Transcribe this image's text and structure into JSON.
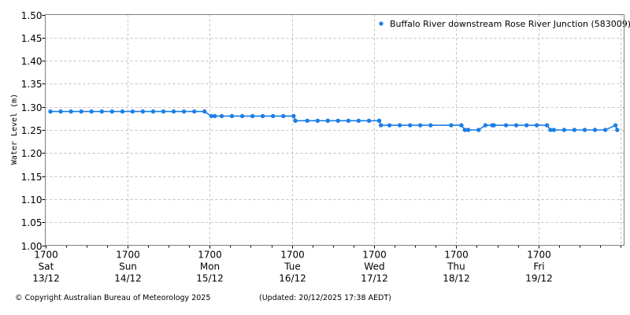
{
  "chart_data": {
    "type": "line",
    "title": "",
    "xlabel": "",
    "ylabel": "Water Level (m)",
    "ylim": [
      1.0,
      1.5
    ],
    "yticks": [
      "1.00",
      "1.05",
      "1.10",
      "1.15",
      "1.20",
      "1.25",
      "1.30",
      "1.35",
      "1.40",
      "1.45",
      "1.50"
    ],
    "grid": true,
    "legend_position": "top-right",
    "x_ticks": [
      {
        "time": "1700",
        "day": "Sat",
        "date": "13/12"
      },
      {
        "time": "1700",
        "day": "Sun",
        "date": "14/12"
      },
      {
        "time": "1700",
        "day": "Mon",
        "date": "15/12"
      },
      {
        "time": "1700",
        "day": "Tue",
        "date": "16/12"
      },
      {
        "time": "1700",
        "day": "Wed",
        "date": "17/12"
      },
      {
        "time": "1700",
        "day": "Thu",
        "date": "18/12"
      },
      {
        "time": "1700",
        "day": "Fri",
        "date": "19/12"
      }
    ],
    "x_unit": "hours since Sat 13/12 1700",
    "x_range_hours": [
      0,
      169
    ],
    "series": [
      {
        "name": "Buffalo River downstream Rose River Junction (583009)",
        "color": "#1a7ee6",
        "x": [
          1.5,
          4.5,
          7.5,
          10.5,
          13.5,
          16.5,
          19.5,
          22.5,
          25.5,
          28.5,
          31.5,
          34.5,
          37.5,
          40.5,
          43.5,
          46.5,
          48.5,
          49.5,
          51.5,
          54.5,
          57.5,
          60.5,
          63.5,
          66.5,
          69.5,
          72.5,
          73.0,
          76.5,
          79.5,
          82.5,
          85.5,
          88.5,
          91.5,
          94.5,
          97.5,
          98.0,
          100.5,
          103.5,
          106.5,
          109.5,
          112.5,
          118.5,
          121.5,
          122.5,
          123.5,
          126.5,
          128.5,
          130.5,
          131.0,
          134.5,
          137.5,
          140.5,
          143.5,
          146.5,
          147.5,
          148.5,
          151.5,
          154.5,
          157.5,
          160.5,
          163.5,
          166.5,
          167.0
        ],
        "values": [
          1.29,
          1.29,
          1.29,
          1.29,
          1.29,
          1.29,
          1.29,
          1.29,
          1.29,
          1.29,
          1.29,
          1.29,
          1.29,
          1.29,
          1.29,
          1.29,
          1.28,
          1.28,
          1.28,
          1.28,
          1.28,
          1.28,
          1.28,
          1.28,
          1.28,
          1.28,
          1.27,
          1.27,
          1.27,
          1.27,
          1.27,
          1.27,
          1.27,
          1.27,
          1.27,
          1.26,
          1.26,
          1.26,
          1.26,
          1.26,
          1.26,
          1.26,
          1.26,
          1.25,
          1.25,
          1.25,
          1.26,
          1.26,
          1.26,
          1.26,
          1.26,
          1.26,
          1.26,
          1.26,
          1.25,
          1.25,
          1.25,
          1.25,
          1.25,
          1.25,
          1.25,
          1.26,
          1.25
        ]
      }
    ]
  },
  "legend": {
    "label": "Buffalo River downstream Rose River Junction (583009)"
  },
  "axis": {
    "ylabel": "Water Level (m)"
  },
  "footer": {
    "copyright": "© Copyright Australian Bureau of Meteorology 2025",
    "updated": "(Updated: 20/12/2025 17:38 AEDT)"
  },
  "colors": {
    "series": "#1a7ee6",
    "grid": "#c0c0c0",
    "axis": "#808080"
  }
}
